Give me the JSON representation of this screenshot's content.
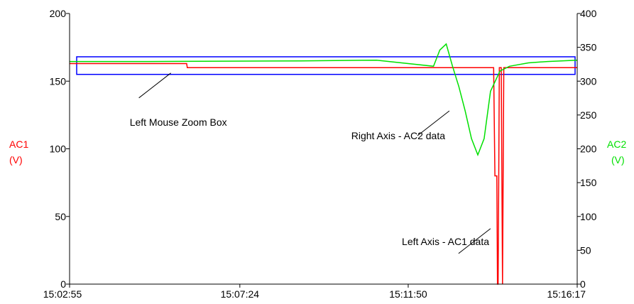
{
  "chart_data": {
    "type": "line",
    "colors": {
      "left_series": "#ff0000",
      "right_series": "#00e000",
      "zoom_box": "#0000ff",
      "axes": "#000000",
      "background": "#ffffff"
    },
    "x_axis": {
      "type": "time",
      "range": [
        "15:02:55",
        "15:16:17"
      ],
      "ticks": [
        "15:02:55",
        "15:07:24",
        "15:11:50",
        "15:16:17"
      ]
    },
    "left_axis": {
      "label_line1": "AC1",
      "label_line2": "(V)",
      "range": [
        0,
        200
      ],
      "ticks": [
        "0",
        "50",
        "100",
        "150",
        "200"
      ]
    },
    "right_axis": {
      "label_line1": "AC2",
      "label_line2": "(V)",
      "range": [
        0,
        400
      ],
      "ticks": [
        "0",
        "50",
        "100",
        "150",
        "200",
        "250",
        "300",
        "350",
        "400"
      ]
    },
    "grid": false,
    "series": [
      {
        "axis": "left",
        "x": [
          "15:02:55",
          "15:06:00",
          "15:06:01",
          "15:13:56",
          "15:14:05",
          "15:14:07",
          "15:14:10",
          "15:14:11",
          "15:14:12",
          "15:14:13",
          "15:14:14",
          "15:14:17",
          "15:14:19",
          "15:14:21",
          "15:16:17"
        ],
        "y": [
          163,
          163,
          160,
          160,
          160,
          80,
          80,
          0,
          0,
          80,
          160,
          160,
          0,
          160,
          160
        ]
      },
      {
        "axis": "right",
        "x": [
          "15:02:55",
          "15:05:00",
          "15:09:00",
          "15:11:00",
          "15:12:30",
          "15:12:40",
          "15:12:50",
          "15:13:00",
          "15:13:10",
          "15:13:20",
          "15:13:30",
          "15:13:40",
          "15:13:50",
          "15:14:00",
          "15:14:15",
          "15:14:30",
          "15:15:00",
          "15:15:30",
          "15:16:17"
        ],
        "y": [
          329,
          329,
          330,
          331,
          322,
          346,
          355,
          322,
          292,
          256,
          215,
          191,
          215,
          285,
          315,
          322,
          327,
          329,
          331
        ]
      }
    ],
    "zoom_box": {
      "x": [
        "15:02:55",
        "15:16:17"
      ],
      "y_left": [
        155,
        168
      ]
    },
    "annotations": [
      {
        "text": "Left Mouse Zoom Box",
        "x": "15:04:30",
        "y_left": 117,
        "target_x": "15:05:35",
        "target_y_left": 156
      },
      {
        "text": "Right Axis - AC2 data",
        "x": "15:10:20",
        "y_left": 107,
        "target_x": "15:12:55",
        "target_y_left": 128
      },
      {
        "text": "Left Axis - AC1 data",
        "x": "15:11:40",
        "y_left": 29,
        "target_x": "15:14:00",
        "target_y_left": 41
      }
    ]
  }
}
